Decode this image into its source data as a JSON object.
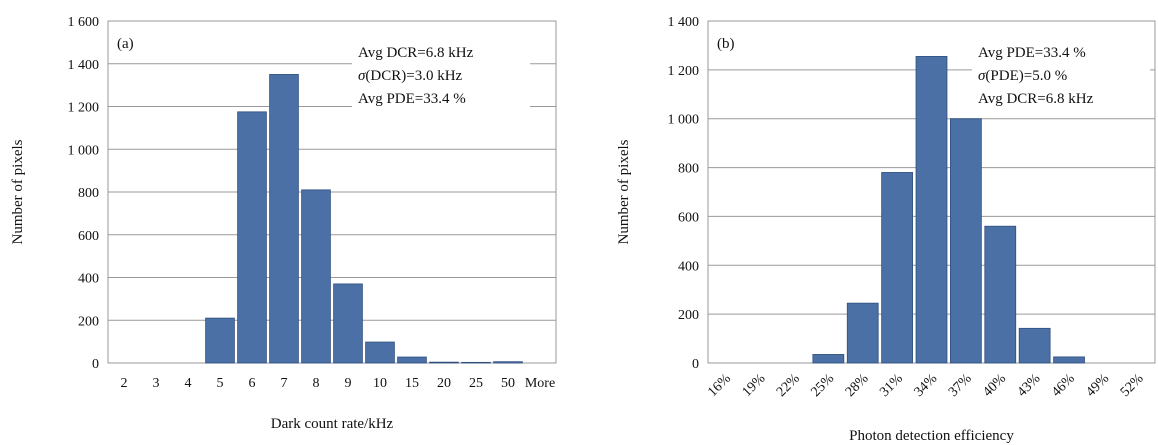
{
  "chart_data": [
    {
      "type": "bar",
      "panel_label": "(a)",
      "categories": [
        "2",
        "3",
        "4",
        "5",
        "6",
        "7",
        "8",
        "9",
        "10",
        "15",
        "20",
        "25",
        "50",
        "More"
      ],
      "values": [
        0,
        0,
        0,
        210,
        1175,
        1350,
        810,
        370,
        98,
        28,
        4,
        3,
        6,
        0
      ],
      "xlabel": "Dark count rate/kHz",
      "ylabel": "Number of pixels",
      "ylim": [
        0,
        1600
      ],
      "yticks": [
        0,
        200,
        400,
        600,
        800,
        1000,
        1200,
        1400,
        1600
      ],
      "ytick_labels": [
        "0",
        "200",
        "400",
        "600",
        "800",
        "1 000",
        "1 200",
        "1 400",
        "1 600"
      ],
      "grid": "horizontal",
      "bar_color": "#4a70a5",
      "annotations": [
        {
          "prefix": "",
          "italic": "",
          "text": "Avg DCR=6.8 kHz"
        },
        {
          "prefix": "",
          "italic": "σ",
          "text": "(DCR)=3.0 kHz"
        },
        {
          "prefix": "",
          "italic": "",
          "text": "Avg PDE=33.4 %"
        }
      ]
    },
    {
      "type": "bar",
      "panel_label": "(b)",
      "categories": [
        "16%",
        "19%",
        "22%",
        "25%",
        "28%",
        "31%",
        "34%",
        "37%",
        "40%",
        "43%",
        "46%",
        "49%",
        "52%"
      ],
      "values": [
        0,
        0,
        0,
        35,
        245,
        780,
        1255,
        1000,
        560,
        142,
        25,
        0,
        0
      ],
      "xlabel": "Photon detection efficiency",
      "ylabel": "Number of pixels",
      "ylim": [
        0,
        1400
      ],
      "yticks": [
        0,
        200,
        400,
        600,
        800,
        1000,
        1200,
        1400
      ],
      "ytick_labels": [
        "0",
        "200",
        "400",
        "600",
        "800",
        "1 000",
        "1 200",
        "1 400"
      ],
      "grid": "horizontal",
      "bar_color": "#4a70a5",
      "annotations": [
        {
          "prefix": "",
          "italic": "",
          "text": "Avg PDE=33.4 %"
        },
        {
          "prefix": "",
          "italic": "σ",
          "text": "(PDE)=5.0 %"
        },
        {
          "prefix": "",
          "italic": "",
          "text": "Avg DCR=6.8 kHz"
        }
      ]
    }
  ]
}
